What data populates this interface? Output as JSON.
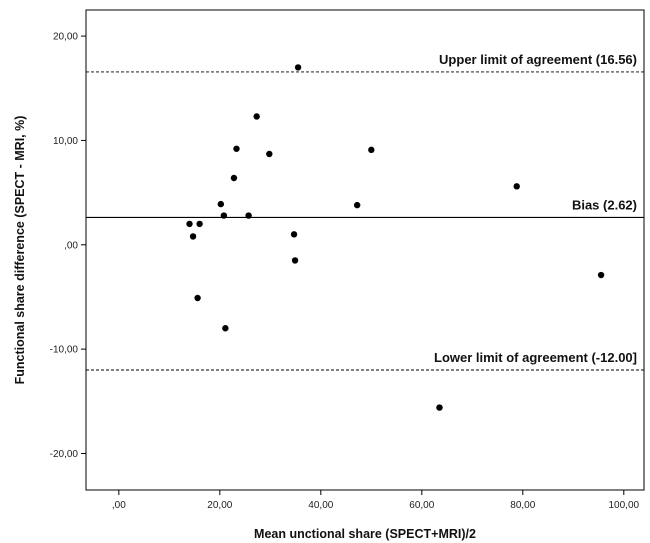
{
  "chart_data": {
    "type": "scatter",
    "title": "",
    "xlabel": "Mean unctional share (SPECT+MRI)/2",
    "ylabel": "Functional share difference (SPECT - MRI, %)",
    "xlim": [
      -6.5,
      104
    ],
    "ylim": [
      -23.5,
      22.5
    ],
    "x_ticks": [
      0,
      20,
      40,
      60,
      80,
      100
    ],
    "x_tick_labels": [
      ",00",
      "20,00",
      "40,00",
      "60,00",
      "80,00",
      "100,00"
    ],
    "y_ticks": [
      -20,
      -10,
      0,
      10,
      20
    ],
    "y_tick_labels": [
      "-20,00",
      "-10,00",
      ",00",
      "10,00",
      "20,00"
    ],
    "reference_lines": [
      {
        "name": "upper",
        "label": "Upper limit of agreement (16.56)",
        "value": 16.56,
        "style": "dashed"
      },
      {
        "name": "bias",
        "label": "Bias (2.62)",
        "value": 2.62,
        "style": "solid"
      },
      {
        "name": "lower",
        "label": "Lower limit of agreement (-12.00]",
        "value": -12.0,
        "style": "dashed"
      }
    ],
    "points": [
      {
        "x": 35.5,
        "y": 17.0
      },
      {
        "x": 27.3,
        "y": 12.3
      },
      {
        "x": 23.3,
        "y": 9.2
      },
      {
        "x": 29.8,
        "y": 8.7
      },
      {
        "x": 50.0,
        "y": 9.1
      },
      {
        "x": 22.8,
        "y": 6.4
      },
      {
        "x": 78.8,
        "y": 5.6
      },
      {
        "x": 20.2,
        "y": 3.9
      },
      {
        "x": 47.2,
        "y": 3.8
      },
      {
        "x": 20.8,
        "y": 2.8
      },
      {
        "x": 25.7,
        "y": 2.8
      },
      {
        "x": 14.0,
        "y": 2.0
      },
      {
        "x": 16.0,
        "y": 2.0
      },
      {
        "x": 14.7,
        "y": 0.8
      },
      {
        "x": 34.7,
        "y": 1.0
      },
      {
        "x": 34.9,
        "y": -1.5
      },
      {
        "x": 95.5,
        "y": -2.9
      },
      {
        "x": 15.6,
        "y": -5.1
      },
      {
        "x": 21.1,
        "y": -8.0
      },
      {
        "x": 63.5,
        "y": -15.6
      }
    ],
    "grid": false,
    "legend": "none"
  }
}
